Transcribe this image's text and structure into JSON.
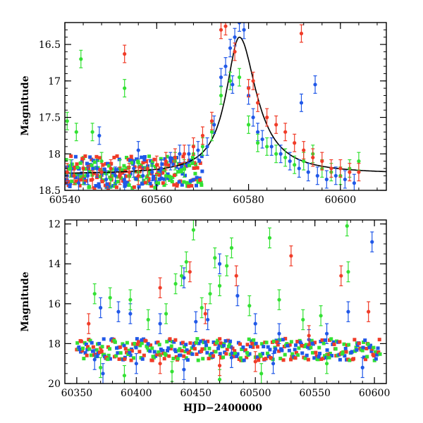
{
  "chart_data": [
    {
      "type": "scatter",
      "title": "",
      "xlabel": "",
      "ylabel": "Magnitude",
      "xlim": [
        60540,
        60610
      ],
      "ylim": [
        18.5,
        16.2
      ],
      "y_inverted": true,
      "x_ticks": [
        "60540",
        "60560",
        "60580",
        "60600"
      ],
      "y_ticks": [
        "16.5",
        "17",
        "17.5",
        "18",
        "18.5"
      ],
      "series": [
        {
          "color": "#2058e8",
          "points": [
            [
              60540.5,
              18.3
            ],
            [
              60541.5,
              18.2
            ],
            [
              60543,
              18.4
            ],
            [
              60545,
              18.3
            ],
            [
              60547,
              18.2
            ],
            [
              60549,
              18.35
            ],
            [
              60551,
              18.3
            ],
            [
              60553,
              18.4
            ],
            [
              60555,
              18.2
            ],
            [
              60557,
              18.3
            ],
            [
              60559,
              18.25
            ],
            [
              60561,
              18.2
            ],
            [
              60563,
              18.1
            ],
            [
              60565,
              18.0
            ],
            [
              60567,
              18.0
            ],
            [
              60569,
              17.95
            ],
            [
              60571,
              17.9
            ],
            [
              60572.5,
              17.6
            ],
            [
              60574,
              16.95
            ],
            [
              60575,
              16.8
            ],
            [
              60576,
              16.55
            ],
            [
              60577,
              16.4
            ],
            [
              60578,
              16.2
            ],
            [
              60579,
              16.3
            ],
            [
              60580,
              17.2
            ],
            [
              60581,
              17.5
            ],
            [
              60582,
              17.7
            ],
            [
              60583,
              17.8
            ],
            [
              60585,
              17.9
            ],
            [
              60587,
              18.0
            ],
            [
              60589,
              18.1
            ],
            [
              60591,
              18.2
            ],
            [
              60593,
              18.25
            ],
            [
              60595,
              18.3
            ],
            [
              60597,
              18.35
            ],
            [
              60599,
              18.3
            ],
            [
              60601,
              18.35
            ],
            [
              60603,
              18.4
            ],
            [
              60576.5,
              17.05
            ],
            [
              60591.5,
              17.3
            ],
            [
              60594.5,
              17.05
            ],
            [
              60547.5,
              17.75
            ],
            [
              60556,
              17.95
            ]
          ]
        },
        {
          "color": "#33e133",
          "points": [
            [
              60540.5,
              17.55
            ],
            [
              60541.2,
              18.2
            ],
            [
              60542.5,
              17.7
            ],
            [
              60544,
              18.3
            ],
            [
              60546,
              17.7
            ],
            [
              60548,
              18.1
            ],
            [
              60550,
              18.35
            ],
            [
              60552,
              18.2
            ],
            [
              60554,
              18.3
            ],
            [
              60556,
              18.25
            ],
            [
              60558,
              18.3
            ],
            [
              60560,
              18.4
            ],
            [
              60562,
              18.3
            ],
            [
              60564,
              18.1
            ],
            [
              60566,
              18.2
            ],
            [
              60568,
              18.0
            ],
            [
              60570,
              17.9
            ],
            [
              60572,
              17.7
            ],
            [
              60574,
              17.2
            ],
            [
              60576,
              17.0
            ],
            [
              60578,
              16.95
            ],
            [
              60580,
              17.6
            ],
            [
              60582,
              17.85
            ],
            [
              60584,
              17.9
            ],
            [
              60586,
              18.0
            ],
            [
              60588,
              18.05
            ],
            [
              60590,
              18.15
            ],
            [
              60592,
              18.1
            ],
            [
              60594,
              18.0
            ],
            [
              60596,
              18.2
            ],
            [
              60598,
              18.25
            ],
            [
              60600,
              18.3
            ],
            [
              60602,
              18.2
            ],
            [
              60604,
              18.1
            ],
            [
              60543.5,
              16.7
            ],
            [
              60553,
              17.1
            ]
          ]
        },
        {
          "color": "#f03c28",
          "points": [
            [
              60540.5,
              18.25
            ],
            [
              60542,
              18.3
            ],
            [
              60544,
              18.2
            ],
            [
              60546,
              18.35
            ],
            [
              60548,
              18.25
            ],
            [
              60550,
              18.2
            ],
            [
              60552,
              18.3
            ],
            [
              60553,
              16.63
            ],
            [
              60554,
              18.25
            ],
            [
              60556,
              18.3
            ],
            [
              60558,
              18.2
            ],
            [
              60560,
              18.15
            ],
            [
              60562,
              18.1
            ],
            [
              60564,
              18.05
            ],
            [
              60566,
              18.0
            ],
            [
              60568,
              17.9
            ],
            [
              60570,
              17.75
            ],
            [
              60572,
              17.55
            ],
            [
              60574,
              16.3
            ],
            [
              60575,
              16.25
            ],
            [
              60577,
              16.6
            ],
            [
              60580,
              17.1
            ],
            [
              60581,
              17.0
            ],
            [
              60582,
              17.3
            ],
            [
              60584,
              17.5
            ],
            [
              60586,
              17.6
            ],
            [
              60588,
              17.7
            ],
            [
              60590,
              17.85
            ],
            [
              60591.5,
              16.35
            ],
            [
              60592,
              17.95
            ],
            [
              60594,
              18.05
            ],
            [
              60596,
              18.1
            ],
            [
              60598,
              18.2
            ],
            [
              60600,
              18.2
            ],
            [
              60602,
              18.25
            ],
            [
              60604,
              18.25
            ]
          ]
        }
      ],
      "model_curve": {
        "color": "#000000",
        "peak_x": 60578,
        "peak_y": 16.4,
        "baseline_y": 18.28
      }
    },
    {
      "type": "scatter",
      "title": "",
      "xlabel": "HJD−2400000",
      "ylabel": "Magnitude",
      "xlim": [
        60340,
        60610
      ],
      "ylim": [
        20,
        11.8
      ],
      "y_inverted": true,
      "x_ticks": [
        "60350",
        "60400",
        "60450",
        "60500",
        "60550",
        "60600"
      ],
      "y_ticks": [
        "12",
        "14",
        "16",
        "18",
        "20"
      ],
      "series": [
        {
          "color": "#2058e8",
          "points": [
            [
              60370,
              16.2
            ],
            [
              60385,
              16.4
            ],
            [
              60395,
              16.5
            ],
            [
              60420,
              17.0
            ],
            [
              60440,
              14.7
            ],
            [
              60450,
              16.9
            ],
            [
              60460,
              16.8
            ],
            [
              60470,
              14.0
            ],
            [
              60485,
              15.6
            ],
            [
              60500,
              17.0
            ],
            [
              60520,
              17.5
            ],
            [
              60545,
              17.8
            ],
            [
              60560,
              17.5
            ],
            [
              60578,
              16.4
            ],
            [
              60598,
              12.9
            ],
            [
              60365,
              18.8
            ],
            [
              60372,
              19.5
            ],
            [
              60400,
              19.0
            ],
            [
              60440,
              19.3
            ],
            [
              60480,
              18.7
            ],
            [
              60515,
              19.0
            ],
            [
              60590,
              19.2
            ]
          ]
        },
        {
          "color": "#33e133",
          "points": [
            [
              60365,
              15.5
            ],
            [
              60378,
              15.7
            ],
            [
              60395,
              15.8
            ],
            [
              60410,
              16.8
            ],
            [
              60425,
              16.5
            ],
            [
              60433,
              15.0
            ],
            [
              60438,
              14.6
            ],
            [
              60442,
              13.9
            ],
            [
              60448,
              12.3
            ],
            [
              60455,
              16.2
            ],
            [
              60462,
              15.5
            ],
            [
              60466,
              13.7
            ],
            [
              60470,
              15.1
            ],
            [
              60476,
              14.1
            ],
            [
              60480,
              13.2
            ],
            [
              60495,
              16.1
            ],
            [
              60512,
              12.7
            ],
            [
              60520,
              15.8
            ],
            [
              60540,
              16.8
            ],
            [
              60555,
              16.6
            ],
            [
              60577,
              12.1
            ],
            [
              60578,
              14.4
            ],
            [
              60370,
              19.2
            ],
            [
              60390,
              19.6
            ],
            [
              60430,
              19.4
            ],
            [
              60470,
              19.8
            ],
            [
              60505,
              19.5
            ],
            [
              60560,
              19.0
            ]
          ]
        },
        {
          "color": "#f03c28",
          "points": [
            [
              60360,
              17.0
            ],
            [
              60420,
              15.2
            ],
            [
              60445,
              14.4
            ],
            [
              60458,
              16.5
            ],
            [
              60484,
              14.6
            ],
            [
              60530,
              13.6
            ],
            [
              60572,
              14.6
            ],
            [
              60595,
              16.4
            ],
            [
              60545,
              17.6
            ],
            [
              60500,
              18.9
            ],
            [
              60470,
              19.1
            ],
            [
              60420,
              19.0
            ]
          ]
        }
      ],
      "baseline_mag": 18.3
    }
  ]
}
